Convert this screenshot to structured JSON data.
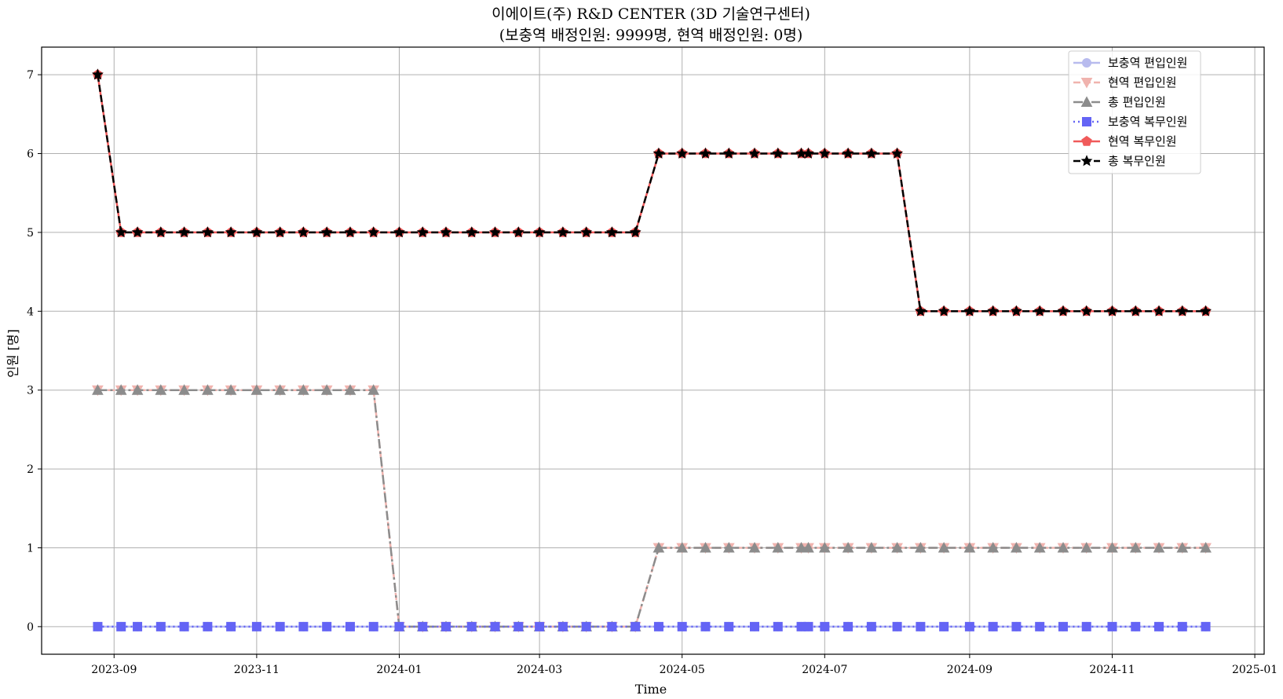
{
  "chart_data": {
    "type": "line",
    "title": "이에이트(주) R&D CENTER (3D 기술연구센터)",
    "subtitle": "(보충역 배정인원: 9999명, 현역 배정인원: 0명)",
    "xlabel": "Time",
    "ylabel": "인원 [명]",
    "ylim": [
      -0.35,
      7.35
    ],
    "xlim": [
      "2023-08-01",
      "2025-01-05"
    ],
    "grid": true,
    "legend_position": "top-right",
    "x_ticks": [
      "2023-09",
      "2023-11",
      "2024-01",
      "2024-03",
      "2024-05",
      "2024-07",
      "2024-09",
      "2024-11",
      "2025-01"
    ],
    "y_ticks": [
      0,
      1,
      2,
      3,
      4,
      5,
      6,
      7
    ],
    "x": [
      "2023-08-25",
      "2023-09-04",
      "2023-09-11",
      "2023-09-21",
      "2023-10-01",
      "2023-10-11",
      "2023-10-21",
      "2023-11-01",
      "2023-11-11",
      "2023-11-21",
      "2023-12-01",
      "2023-12-11",
      "2023-12-21",
      "2024-01-01",
      "2024-01-11",
      "2024-01-21",
      "2024-02-01",
      "2024-02-11",
      "2024-02-21",
      "2024-03-01",
      "2024-03-11",
      "2024-03-21",
      "2024-04-01",
      "2024-04-11",
      "2024-04-21",
      "2024-05-01",
      "2024-05-11",
      "2024-05-21",
      "2024-06-01",
      "2024-06-11",
      "2024-06-21",
      "2024-06-24",
      "2024-07-01",
      "2024-07-11",
      "2024-07-21",
      "2024-08-01",
      "2024-08-11",
      "2024-08-21",
      "2024-09-01",
      "2024-09-11",
      "2024-09-21",
      "2024-10-01",
      "2024-10-11",
      "2024-10-21",
      "2024-11-01",
      "2024-11-11",
      "2024-11-21",
      "2024-12-01",
      "2024-12-11"
    ],
    "series": [
      {
        "name": "보충역 편입인원",
        "color": "#b8bbee",
        "marker": "circle",
        "dash": "solid",
        "values": [
          0,
          0,
          0,
          0,
          0,
          0,
          0,
          0,
          0,
          0,
          0,
          0,
          0,
          0,
          0,
          0,
          0,
          0,
          0,
          0,
          0,
          0,
          0,
          0,
          0,
          0,
          0,
          0,
          0,
          0,
          0,
          0,
          0,
          0,
          0,
          0,
          0,
          0,
          0,
          0,
          0,
          0,
          0,
          0,
          0,
          0,
          0,
          0,
          0
        ]
      },
      {
        "name": "현역 편입인원",
        "color": "#f0b3ae",
        "marker": "triangle-down",
        "dash": "dashed",
        "values": [
          3,
          3,
          3,
          3,
          3,
          3,
          3,
          3,
          3,
          3,
          3,
          3,
          3,
          0,
          0,
          0,
          0,
          0,
          0,
          0,
          0,
          0,
          0,
          0,
          1,
          1,
          1,
          1,
          1,
          1,
          1,
          1,
          1,
          1,
          1,
          1,
          1,
          1,
          1,
          1,
          1,
          1,
          1,
          1,
          1,
          1,
          1,
          1,
          1
        ]
      },
      {
        "name": "총 편입인원",
        "color": "#8c8c8c",
        "marker": "triangle-up",
        "dash": "dashdot",
        "values": [
          3,
          3,
          3,
          3,
          3,
          3,
          3,
          3,
          3,
          3,
          3,
          3,
          3,
          0,
          0,
          0,
          0,
          0,
          0,
          0,
          0,
          0,
          0,
          0,
          1,
          1,
          1,
          1,
          1,
          1,
          1,
          1,
          1,
          1,
          1,
          1,
          1,
          1,
          1,
          1,
          1,
          1,
          1,
          1,
          1,
          1,
          1,
          1,
          1
        ]
      },
      {
        "name": "보충역 복무인원",
        "color": "#6464f5",
        "marker": "square",
        "dash": "dotted",
        "values": [
          0,
          0,
          0,
          0,
          0,
          0,
          0,
          0,
          0,
          0,
          0,
          0,
          0,
          0,
          0,
          0,
          0,
          0,
          0,
          0,
          0,
          0,
          0,
          0,
          0,
          0,
          0,
          0,
          0,
          0,
          0,
          0,
          0,
          0,
          0,
          0,
          0,
          0,
          0,
          0,
          0,
          0,
          0,
          0,
          0,
          0,
          0,
          0,
          0
        ]
      },
      {
        "name": "현역 복무인원",
        "color": "#f05a5a",
        "marker": "pentagon",
        "dash": "solid",
        "values": [
          7,
          5,
          5,
          5,
          5,
          5,
          5,
          5,
          5,
          5,
          5,
          5,
          5,
          5,
          5,
          5,
          5,
          5,
          5,
          5,
          5,
          5,
          5,
          5,
          6,
          6,
          6,
          6,
          6,
          6,
          6,
          6,
          6,
          6,
          6,
          6,
          4,
          4,
          4,
          4,
          4,
          4,
          4,
          4,
          4,
          4,
          4,
          4,
          4
        ]
      },
      {
        "name": "총 복무인원",
        "color": "#000000",
        "marker": "star",
        "dash": "dashed",
        "values": [
          7,
          5,
          5,
          5,
          5,
          5,
          5,
          5,
          5,
          5,
          5,
          5,
          5,
          5,
          5,
          5,
          5,
          5,
          5,
          5,
          5,
          5,
          5,
          5,
          6,
          6,
          6,
          6,
          6,
          6,
          6,
          6,
          6,
          6,
          6,
          6,
          4,
          4,
          4,
          4,
          4,
          4,
          4,
          4,
          4,
          4,
          4,
          4,
          4
        ]
      }
    ]
  }
}
